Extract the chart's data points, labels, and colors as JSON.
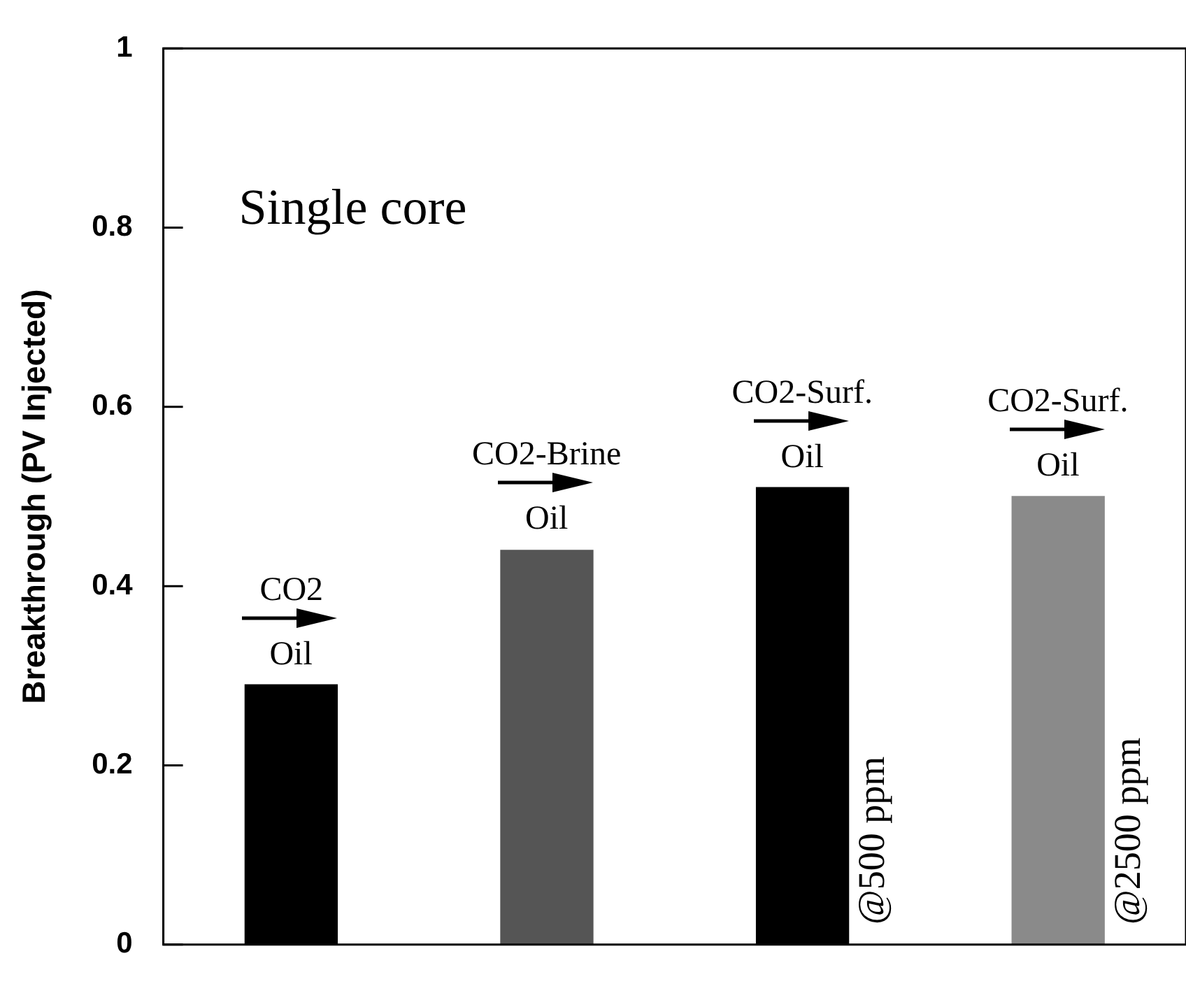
{
  "chart_data": {
    "type": "bar",
    "ylabel": "Breakthrough (PV Injected)",
    "categories": [
      null,
      null,
      null,
      null
    ],
    "values": [
      0.29,
      0.44,
      0.51,
      0.5
    ],
    "colors": [
      "#000000",
      "#555555",
      "#000000",
      "#8a8a8a"
    ],
    "ylim": [
      0,
      1
    ],
    "yticks": [
      0,
      0.2,
      0.4,
      0.6,
      0.8,
      1
    ],
    "grid": false,
    "legend": false,
    "annotations": [
      "Single core",
      {
        "text": "CO2",
        "y": 0.29
      },
      {
        "text": "Oil",
        "y": 0.29
      },
      {
        "text": "CO2-Brine",
        "y": 0.44
      },
      {
        "text": "Oil",
        "y": 0.44
      },
      {
        "text": "CO2-Surf.",
        "y": 0.51
      },
      {
        "text": "Oil",
        "y": 0.51
      },
      "@500 ppm",
      {
        "text": "CO2-Surf.",
        "y": 0.5
      },
      {
        "text": "Oil",
        "y": 0.5
      },
      "@2500 ppm"
    ]
  }
}
